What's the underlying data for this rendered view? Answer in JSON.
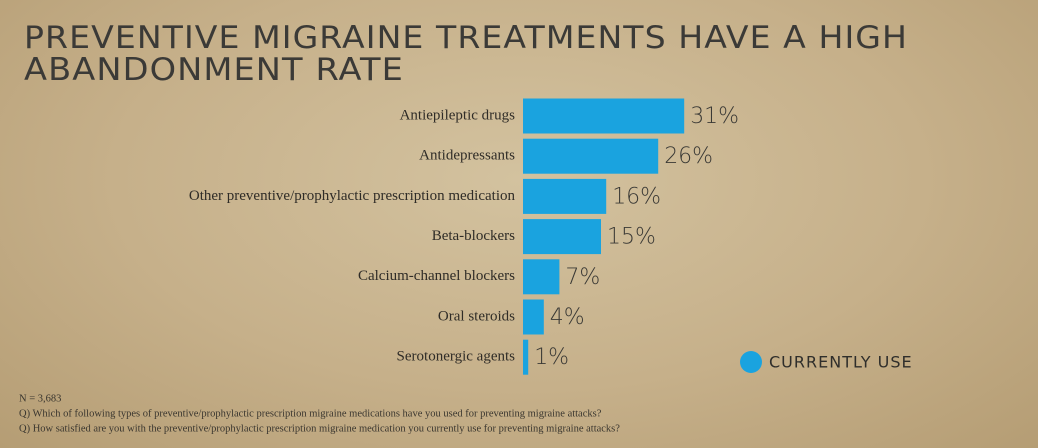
{
  "chart_data": {
    "type": "bar",
    "orientation": "horizontal",
    "title": [
      "PREVENTIVE MIGRAINE TREATMENTS HAVE A HIGH",
      "ABANDONMENT RATE"
    ],
    "categories": [
      "Antiepileptic drugs",
      "Antidepressants",
      "Other preventive/prophylactic prescription  medication",
      "Beta-blockers",
      "Calcium-channel blockers",
      "Oral steroids",
      "Serotonergic agents"
    ],
    "series": [
      {
        "name": "CURRENTLY USE",
        "color": "#1aa3df",
        "values": [
          31,
          26,
          16,
          15,
          7,
          4,
          1
        ],
        "value_labels": [
          "31%",
          "26%",
          "16%",
          "15%",
          "7%",
          "4%",
          "1%"
        ]
      }
    ],
    "notes": [
      "N = 3,683",
      "Q) Which of following types of preventive/prophylactic prescription migraine medications have you used for preventing migraine attacks?",
      "Q) How satisfied are you with the preventive/prophylactic prescription migraine medication you currently use for preventing migraine attacks?"
    ]
  }
}
